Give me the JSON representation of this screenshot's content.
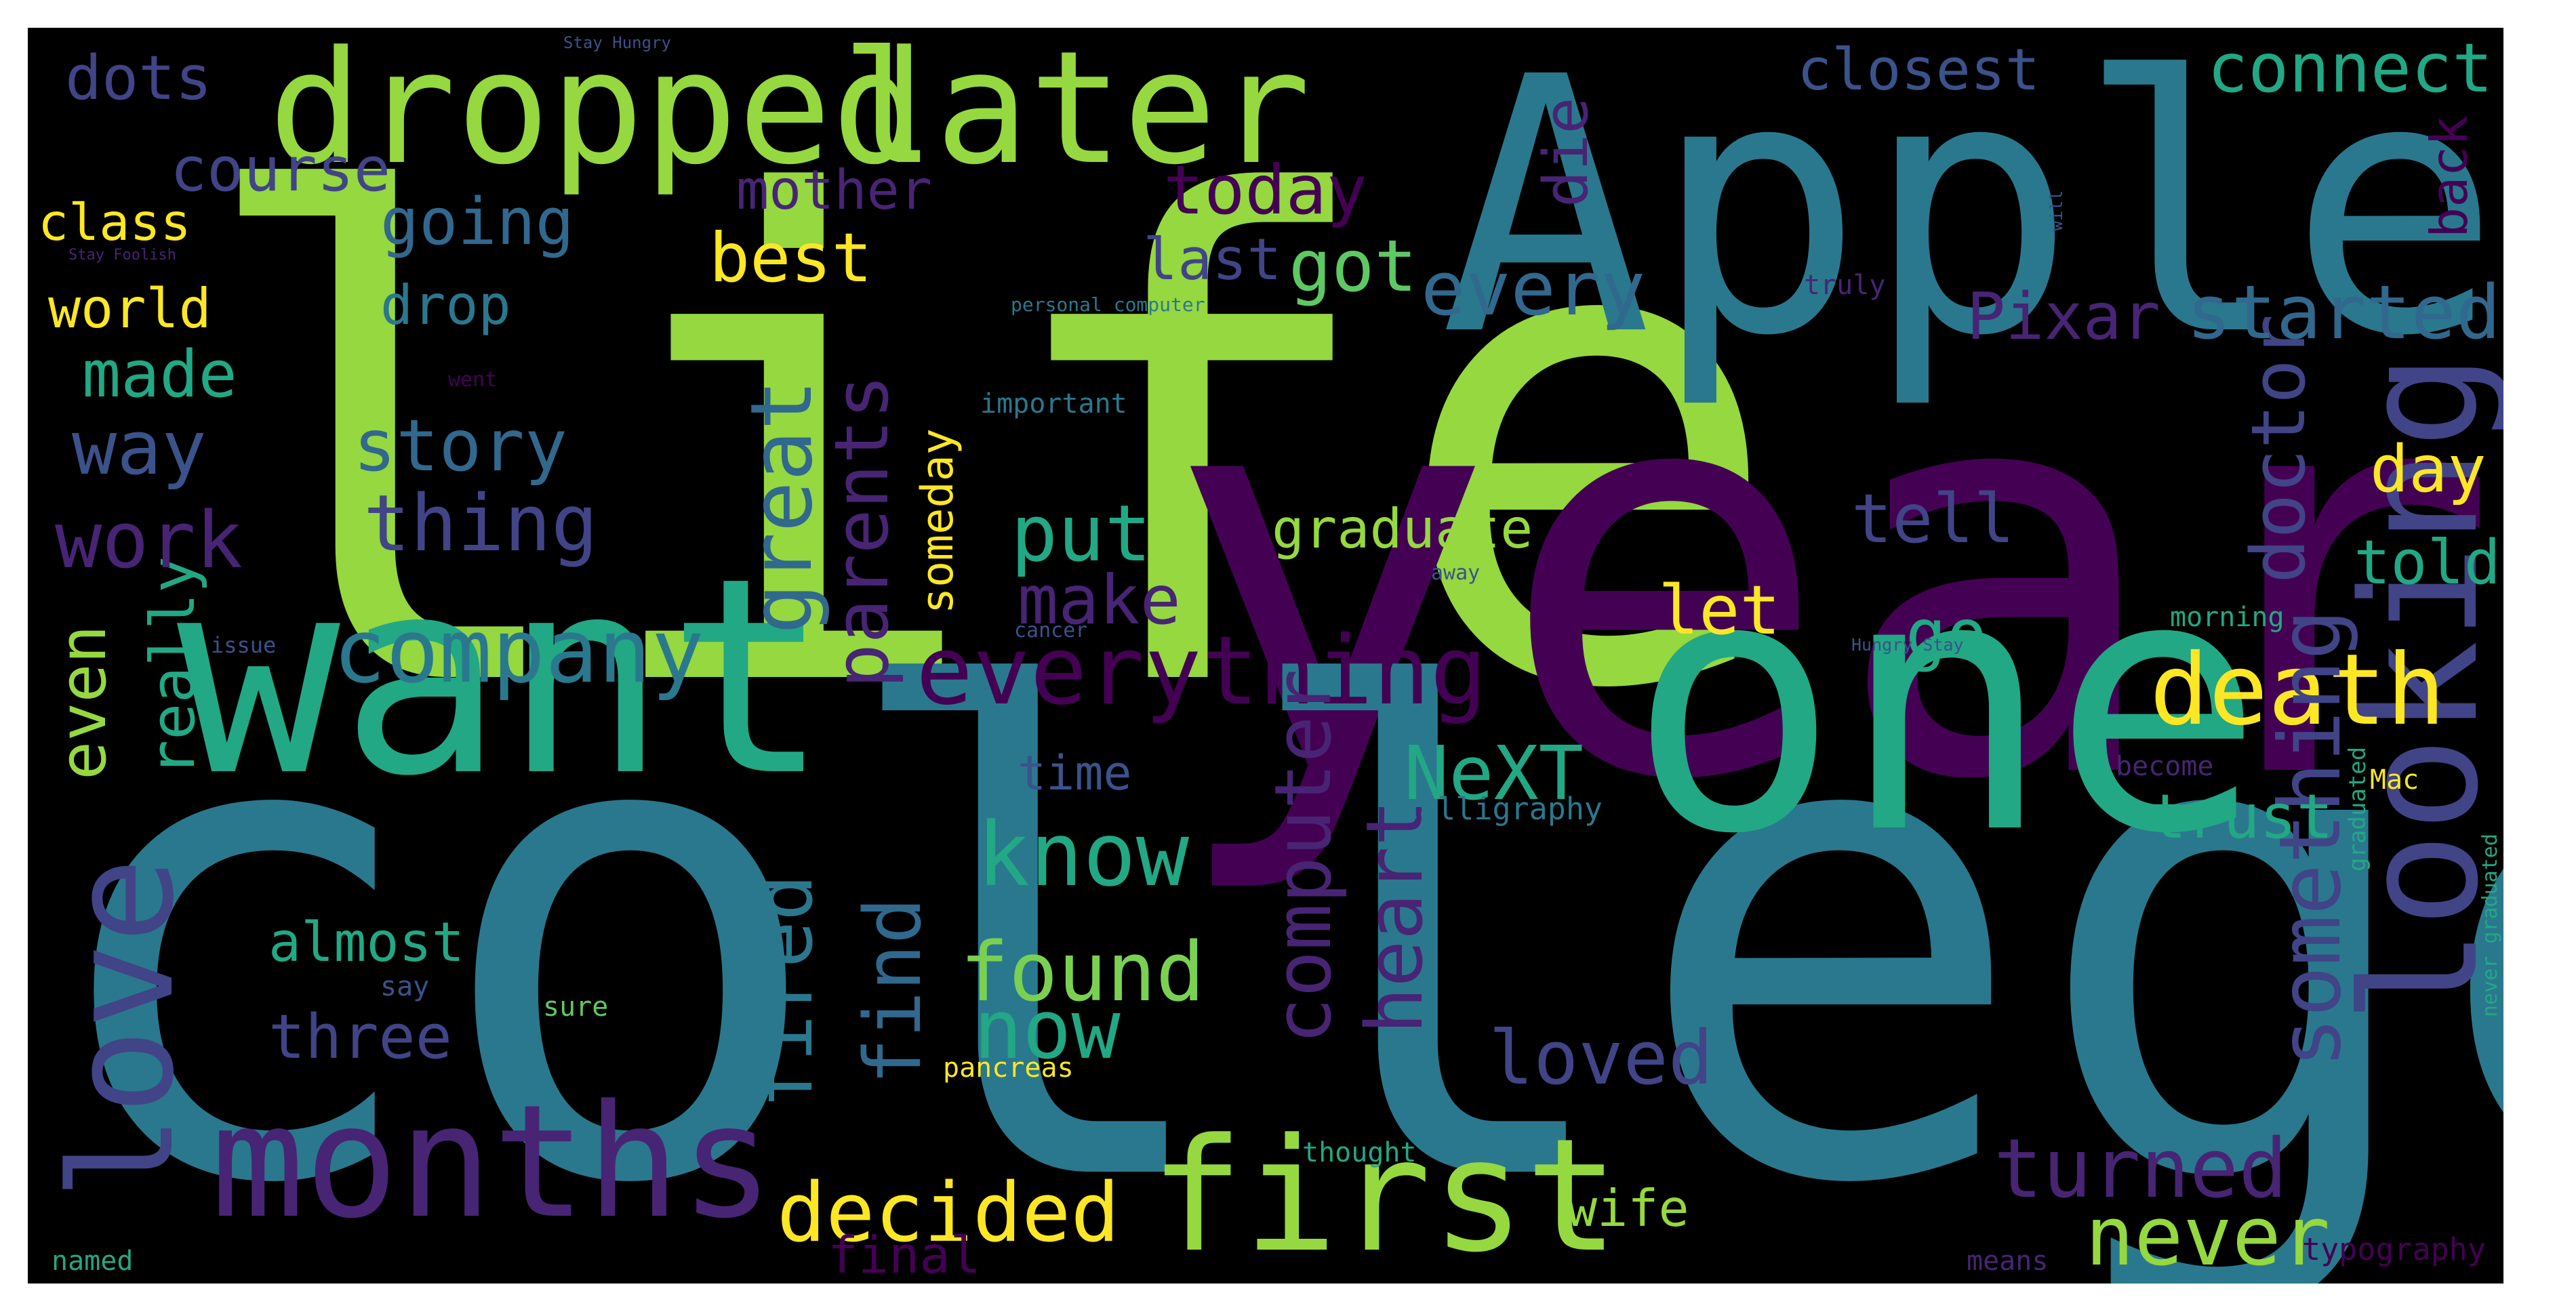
{
  "colors": {
    "background": "#000000",
    "frame": "#ffffff",
    "palette": [
      "#95d840",
      "#2a788e",
      "#440154",
      "#22a884",
      "#482475",
      "#414487",
      "#fde725",
      "#7ad151",
      "#3b528b",
      "#31688e",
      "#21918c",
      "#5ec962"
    ]
  },
  "words": [
    "life",
    "year",
    "college",
    "Apple",
    "one",
    "want",
    "dropped",
    "later",
    "months",
    "first",
    "looking",
    "love",
    "everything",
    "death",
    "company",
    "something",
    "computer",
    "great",
    "parents",
    "find",
    "fired",
    "heart",
    "doctor",
    "know",
    "found",
    "now",
    "never",
    "turned",
    "decided",
    "loved",
    "even",
    "really",
    "dots",
    "course",
    "going",
    "best",
    "today",
    "mother",
    "closest",
    "connect",
    "back",
    "every",
    "started",
    "Pixar",
    "got",
    "last",
    "die",
    "class",
    "world",
    "drop",
    "made",
    "way",
    "story",
    "thing",
    "work",
    "graduate",
    "put",
    "make",
    "let",
    "go",
    "day",
    "told",
    "tell",
    "NeXT",
    "time",
    "trust",
    "almost",
    "three",
    "wife",
    "final",
    "someday",
    "Stay Hungry",
    "will",
    "truly",
    "personal computer",
    "important",
    "went",
    "Stay Foolish",
    "away",
    "morning",
    "issue",
    "cancer",
    "Hungry Stay",
    "graduated",
    "never graduated",
    "Mac",
    "become",
    "calligraphy",
    "say",
    "sure",
    "pancreas",
    "thought",
    "named",
    "means",
    "typography"
  ]
}
